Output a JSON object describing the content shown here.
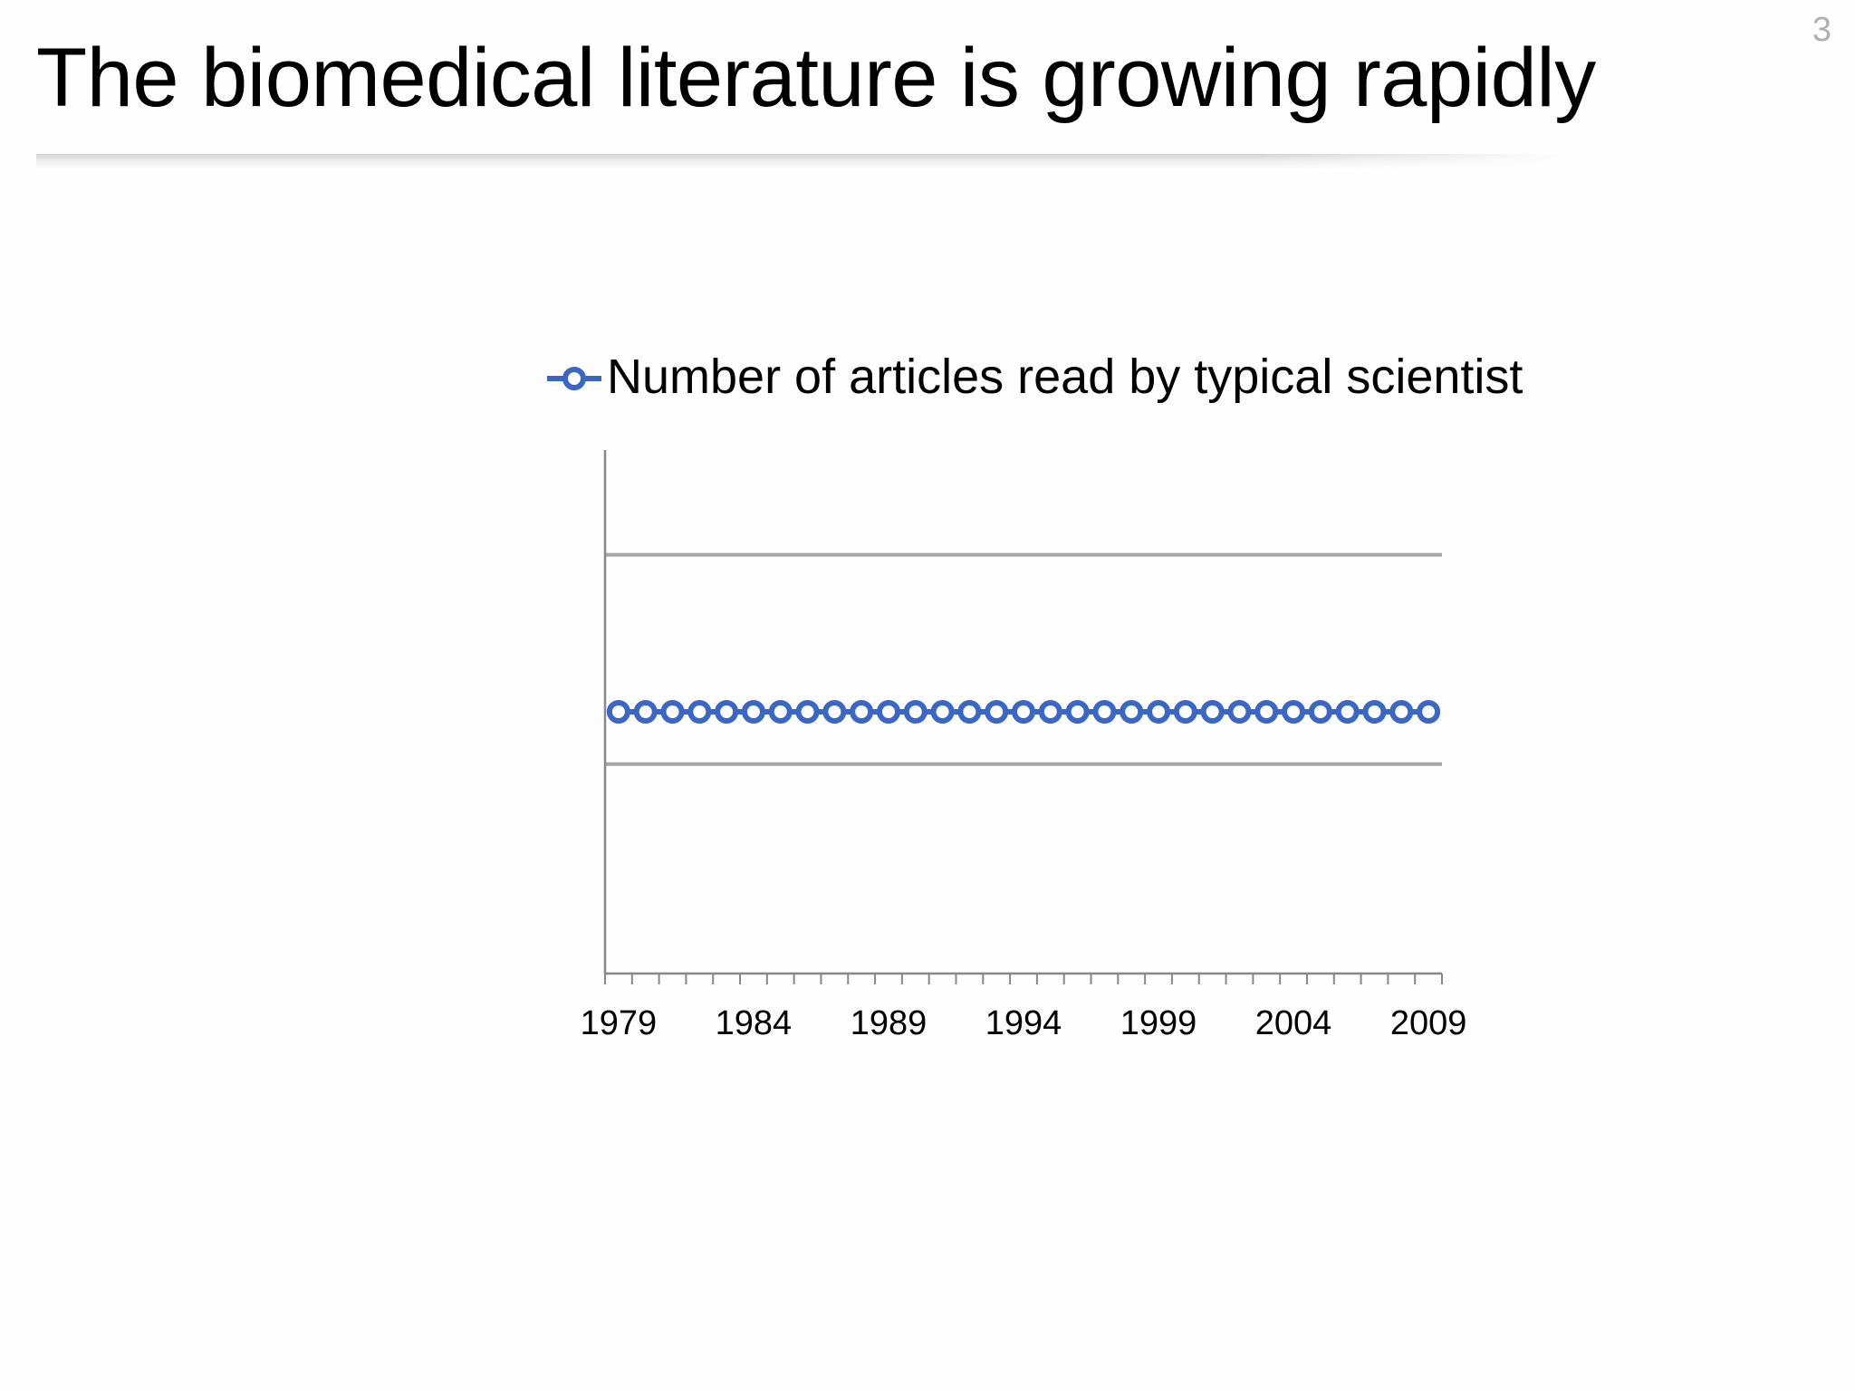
{
  "slide": {
    "number": "3",
    "title": "The biomedical literature is growing rapidly"
  },
  "colors": {
    "series": "#3a66c6",
    "axis": "#888888",
    "grid": "#a6a6a6",
    "text": "#000000"
  },
  "chart_data": {
    "type": "line",
    "title": "",
    "xlabel": "",
    "ylabel": "",
    "legend_position": "top",
    "grid": true,
    "y_tick_labels_visible": false,
    "x": [
      1979,
      1980,
      1981,
      1982,
      1983,
      1984,
      1985,
      1986,
      1987,
      1988,
      1989,
      1990,
      1991,
      1992,
      1993,
      1994,
      1995,
      1996,
      1997,
      1998,
      1999,
      2000,
      2001,
      2002,
      2003,
      2004,
      2005,
      2006,
      2007,
      2008,
      2009
    ],
    "x_tick_labels": [
      "1979",
      "1984",
      "1989",
      "1994",
      "1999",
      "2004",
      "2009"
    ],
    "ylim": [
      0,
      1
    ],
    "gridlines_y": [
      0.4,
      0.8
    ],
    "series": [
      {
        "name": "Number of articles read by typical scientist",
        "marker": "circle-open",
        "values": [
          0.5,
          0.5,
          0.5,
          0.5,
          0.5,
          0.5,
          0.5,
          0.5,
          0.5,
          0.5,
          0.5,
          0.5,
          0.5,
          0.5,
          0.5,
          0.5,
          0.5,
          0.5,
          0.5,
          0.5,
          0.5,
          0.5,
          0.5,
          0.5,
          0.5,
          0.5,
          0.5,
          0.5,
          0.5,
          0.5,
          0.5
        ]
      }
    ]
  }
}
